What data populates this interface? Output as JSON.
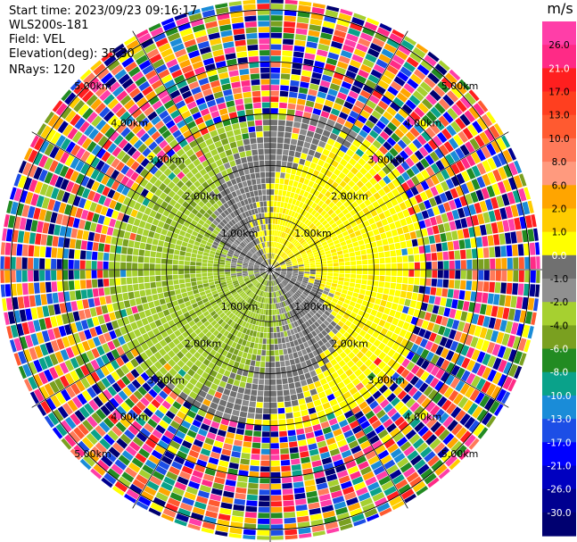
{
  "header": {
    "start_time": "Start time: 2023/09/23 09:16:17",
    "instrument": "WLS200s-181",
    "field": "Field: VEL",
    "elevation": "Elevation(deg): 35.30",
    "nrays": "NRays: 120"
  },
  "chart_data": {
    "type": "heatmap",
    "projection": "polar-ppi",
    "field": "VEL",
    "units": "m/s",
    "n_rays": 120,
    "range_rings_km": [
      1,
      2,
      3,
      4,
      5
    ],
    "range_ring_labels": [
      "1.00km",
      "2.00km",
      "3.00km",
      "4.00km",
      "5.00km"
    ],
    "max_range_km": 5.2,
    "colorbar": {
      "title": "m/s",
      "tick_labels": [
        "26.0",
        "21.0",
        "17.0",
        "13.0",
        "10.0",
        "8.0",
        "6.0",
        "2.0",
        "1.0",
        "0.0",
        "-1.0",
        "-2.0",
        "-4.0",
        "-6.0",
        "-8.0",
        "-10.0",
        "-13.0",
        "-17.0",
        "-21.0",
        "-26.0",
        "-30.0"
      ],
      "colors": [
        "#ff3ea8",
        "#ff2a86",
        "#ff1f1f",
        "#ff3f1f",
        "#ff5a30",
        "#ff7a5a",
        "#ff9a7e",
        "#ffa500",
        "#ffcc00",
        "#ffff00",
        "#707070",
        "#909090",
        "#a6d030",
        "#7aa020",
        "#228b22",
        "#0aa28a",
        "#1a8cd8",
        "#1c4ee6",
        "#0000ff",
        "#0000c0",
        "#000090",
        "#000070"
      ]
    },
    "velocity_pattern": {
      "gray_velocity": 0.0,
      "yellow_velocity": 1.5,
      "green_velocity": -1.5,
      "clear_air_range_km": 3.0
    }
  }
}
